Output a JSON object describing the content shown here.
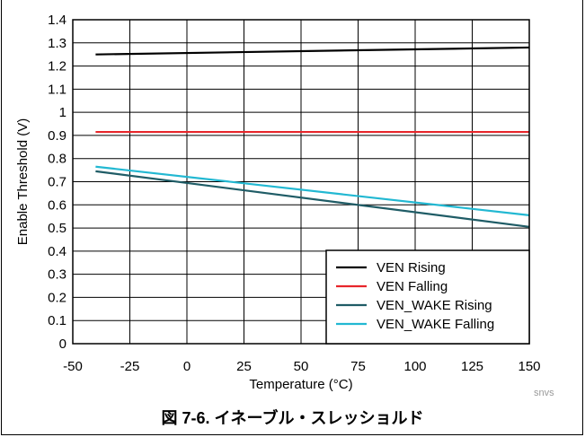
{
  "chart_data": {
    "type": "line",
    "xlabel": "Temperature (°C)",
    "ylabel": "Enable Threshold (V)",
    "xlim": [
      -50,
      150
    ],
    "ylim": [
      0,
      1.4
    ],
    "xticks": [
      -50,
      -25,
      0,
      25,
      50,
      75,
      100,
      125,
      150
    ],
    "xtick_labels": [
      "-50",
      "-25",
      "0",
      "25",
      "50",
      "75",
      "100",
      "125",
      "150"
    ],
    "yticks": [
      0,
      0.1,
      0.2,
      0.3,
      0.4,
      0.5,
      0.6,
      0.7,
      0.8,
      0.9,
      1.0,
      1.1,
      1.2,
      1.3,
      1.4
    ],
    "ytick_labels": [
      "0",
      "0.1",
      "0.2",
      "0.3",
      "0.4",
      "0.5",
      "0.6",
      "0.7",
      "0.8",
      "0.9",
      "1",
      "1.1",
      "1.2",
      "1.3",
      "1.4"
    ],
    "grid": true,
    "legend_position": "bottom-right",
    "series": [
      {
        "name": "VEN Rising",
        "color": "#000000",
        "x": [
          -40,
          150
        ],
        "y": [
          1.25,
          1.28
        ]
      },
      {
        "name": "VEN Falling",
        "color": "#e8262b",
        "x": [
          -40,
          150
        ],
        "y": [
          0.915,
          0.915
        ]
      },
      {
        "name": "VEN_WAKE Rising",
        "color": "#1f5c66",
        "x": [
          -40,
          150
        ],
        "y": [
          0.745,
          0.505
        ]
      },
      {
        "name": "VEN_WAKE Falling",
        "color": "#22b8d2",
        "x": [
          -40,
          150
        ],
        "y": [
          0.765,
          0.555
        ]
      }
    ]
  },
  "watermark": "snvs",
  "caption": "図 7-6. イネーブル・スレッショルド"
}
